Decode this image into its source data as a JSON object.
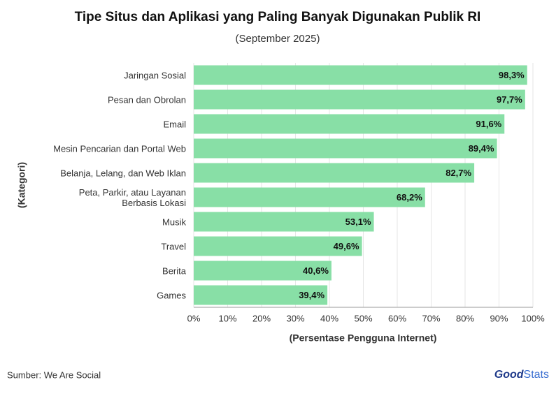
{
  "chart_data": {
    "type": "bar",
    "orientation": "horizontal",
    "title": "Tipe Situs dan Aplikasi yang Paling Banyak Digunakan Publik RI",
    "subtitle": "(September 2025)",
    "x_label": "(Persentase Pengguna Internet)",
    "y_label": "(Kategori)",
    "categories": [
      "Jaringan Sosial",
      "Pesan dan Obrolan",
      "Email",
      "Mesin Pencarian dan Portal Web",
      "Belanja, Lelang, dan Web Iklan",
      "Peta, Parkir, atau Layanan\nBerbasis Lokasi",
      "Musik",
      "Travel",
      "Berita",
      "Games"
    ],
    "values": [
      98.3,
      97.7,
      91.6,
      89.4,
      82.7,
      68.2,
      53.1,
      49.6,
      40.6,
      39.4
    ],
    "value_labels": [
      "98,3%",
      "97,7%",
      "91,6%",
      "89,4%",
      "82,7%",
      "68,2%",
      "53,1%",
      "49,6%",
      "40,6%",
      "39,4%"
    ],
    "color": "#88dfa6",
    "xlim": [
      0,
      100
    ],
    "xticks": [
      {
        "value": 0,
        "label": "0%"
      },
      {
        "value": 10,
        "label": "10%"
      },
      {
        "value": 20,
        "label": "20%"
      },
      {
        "value": 30,
        "label": "30%"
      },
      {
        "value": 40,
        "label": "40%"
      },
      {
        "value": 50,
        "label": "50%"
      },
      {
        "value": 60,
        "label": "60%"
      },
      {
        "value": 70,
        "label": "70%"
      },
      {
        "value": 80,
        "label": "80%"
      },
      {
        "value": 90,
        "label": "90%"
      },
      {
        "value": 100,
        "label": "100%"
      }
    ],
    "grid": true,
    "source": "Sumber: We Are Social",
    "brand": [
      "Good",
      "Stats"
    ]
  }
}
